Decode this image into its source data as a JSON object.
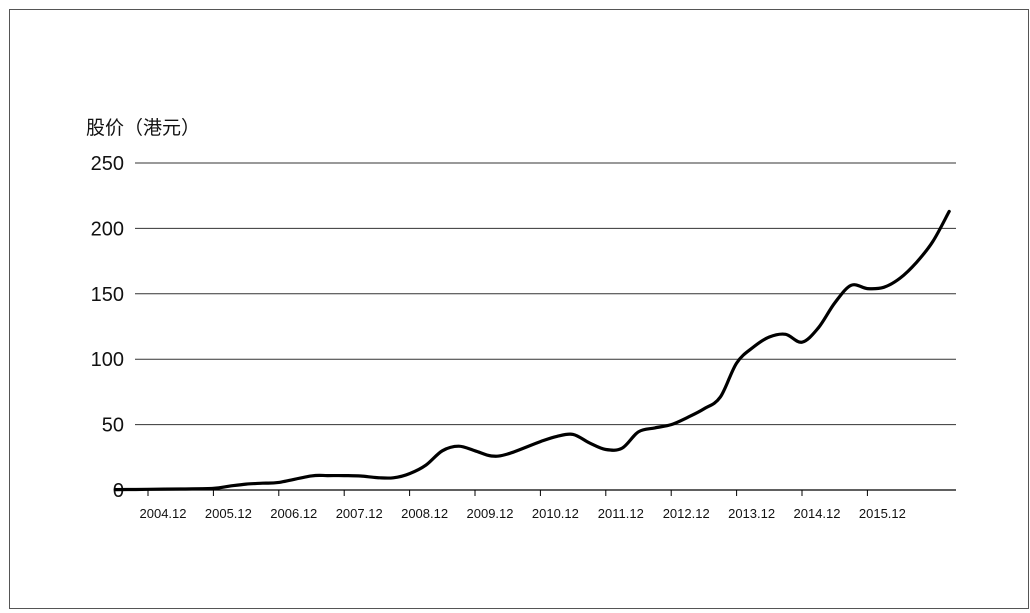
{
  "chart_data": {
    "type": "line",
    "title": "",
    "xlabel": "",
    "ylabel": "股价（港元）",
    "ylim": [
      0,
      250
    ],
    "yticks": [
      0,
      50,
      100,
      150,
      200,
      250
    ],
    "grid": "horizontal",
    "x_tick_labels": [
      "2004.12",
      "2005.12",
      "2006.12",
      "2007.12",
      "2008.12",
      "2009.12",
      "2010.12",
      "2011.12",
      "2012.12",
      "2013.12",
      "2014.12",
      "2015.12"
    ],
    "colors": {
      "line": "#000000",
      "grid": "#333333"
    },
    "series": [
      {
        "values": [
          [
            "2004.06",
            0.3
          ],
          [
            "2004.12",
            0.5
          ],
          [
            "2005.06",
            0.8
          ],
          [
            "2005.12",
            1.2
          ],
          [
            "2006.03",
            3.0
          ],
          [
            "2006.06",
            4.5
          ],
          [
            "2006.09",
            5.2
          ],
          [
            "2006.12",
            5.8
          ],
          [
            "2007.06",
            10.8
          ],
          [
            "2007.09",
            11.0
          ],
          [
            "2007.12",
            11.0
          ],
          [
            "2008.03",
            10.7
          ],
          [
            "2008.06",
            9.5
          ],
          [
            "2008.09",
            9.3
          ],
          [
            "2008.12",
            12.5
          ],
          [
            "2009.03",
            19.0
          ],
          [
            "2009.06",
            30.0
          ],
          [
            "2009.09",
            33.5
          ],
          [
            "2009.12",
            30.0
          ],
          [
            "2010.03",
            26.0
          ],
          [
            "2010.06",
            27.5
          ],
          [
            "2010.12",
            37.0
          ],
          [
            "2011.03",
            41.0
          ],
          [
            "2011.06",
            42.5
          ],
          [
            "2011.09",
            36.0
          ],
          [
            "2011.12",
            31.0
          ],
          [
            "2012.03",
            32.0
          ],
          [
            "2012.06",
            44.5
          ],
          [
            "2012.09",
            47.5
          ],
          [
            "2012.12",
            50.0
          ],
          [
            "2013.03",
            55.5
          ],
          [
            "2013.06",
            62.0
          ],
          [
            "2013.09",
            71.0
          ],
          [
            "2013.12",
            97.0
          ],
          [
            "2014.03",
            109.0
          ],
          [
            "2014.06",
            117.0
          ],
          [
            "2014.09",
            119.0
          ],
          [
            "2014.12",
            113.0
          ],
          [
            "2015.03",
            124.0
          ],
          [
            "2015.06",
            143.0
          ],
          [
            "2015.09",
            156.5
          ],
          [
            "2015.12",
            154.0
          ],
          [
            "2016.03",
            155.0
          ],
          [
            "2016.06",
            162.0
          ],
          [
            "2016.09",
            174.0
          ],
          [
            "2016.12",
            190.0
          ],
          [
            "2017.03",
            213.0
          ]
        ]
      }
    ]
  }
}
